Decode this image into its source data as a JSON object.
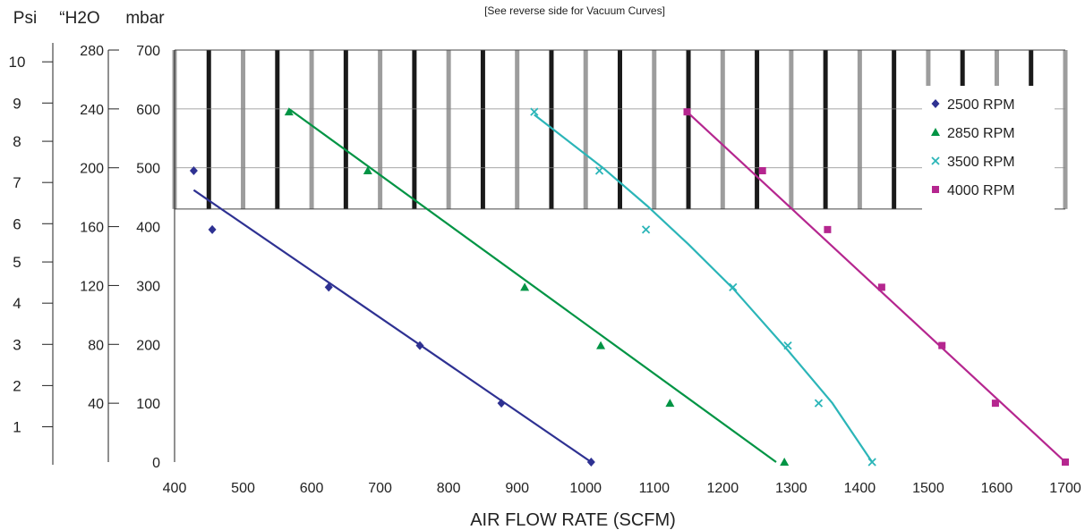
{
  "note": "[See reverse side for Vacuum Curves]",
  "chart_data": {
    "type": "scatter",
    "xlabel": "AIR FLOW RATE (SCFM)",
    "xlim": [
      400,
      1700
    ],
    "x_ticks": [
      "400",
      "500",
      "600",
      "700",
      "800",
      "900",
      "1000",
      "1100",
      "1200",
      "1300",
      "1400",
      "1500",
      "1600",
      "1700"
    ],
    "ylim": [
      0,
      700
    ],
    "shaded_band_above_mbar": 430,
    "y_axes": [
      {
        "name": "mbar",
        "label": "mbar",
        "ticks": [
          {
            "label": "0",
            "mbar": 0
          },
          {
            "label": "100",
            "mbar": 100
          },
          {
            "label": "200",
            "mbar": 200
          },
          {
            "label": "300",
            "mbar": 300
          },
          {
            "label": "400",
            "mbar": 400
          },
          {
            "label": "500",
            "mbar": 500
          },
          {
            "label": "600",
            "mbar": 600
          },
          {
            "label": "700",
            "mbar": 700
          }
        ]
      },
      {
        "name": "h2o",
        "label": "“H2O",
        "ticks": [
          {
            "label": "40",
            "mbar": 100
          },
          {
            "label": "80",
            "mbar": 200
          },
          {
            "label": "120",
            "mbar": 300
          },
          {
            "label": "160",
            "mbar": 400
          },
          {
            "label": "200",
            "mbar": 500
          },
          {
            "label": "240",
            "mbar": 600
          },
          {
            "label": "280",
            "mbar": 700
          }
        ]
      },
      {
        "name": "psi",
        "label": "Psi",
        "ticks": [
          {
            "label": "1",
            "mbar": 60
          },
          {
            "label": "2",
            "mbar": 130
          },
          {
            "label": "3",
            "mbar": 200
          },
          {
            "label": "4",
            "mbar": 270
          },
          {
            "label": "5",
            "mbar": 340
          },
          {
            "label": "6",
            "mbar": 405
          },
          {
            "label": "7",
            "mbar": 475
          },
          {
            "label": "8",
            "mbar": 545
          },
          {
            "label": "9",
            "mbar": 610
          },
          {
            "label": "10",
            "mbar": 680
          }
        ]
      }
    ],
    "legend_position": "top-right",
    "series": [
      {
        "name": "2500 RPM",
        "color": "#2e3192",
        "marker": "diamond",
        "points": [
          [
            428,
            495
          ],
          [
            455,
            395
          ],
          [
            625,
            297
          ],
          [
            758,
            198
          ],
          [
            877,
            100
          ],
          [
            1008,
            0
          ]
        ],
        "fit": [
          [
            428,
            462
          ],
          [
            1008,
            0
          ]
        ]
      },
      {
        "name": "2850 RPM",
        "color": "#009444",
        "marker": "triangle",
        "points": [
          [
            567,
            595
          ],
          [
            682,
            495
          ],
          [
            911,
            297
          ],
          [
            1022,
            198
          ],
          [
            1123,
            100
          ],
          [
            1290,
            0
          ]
        ],
        "fit": [
          [
            567,
            600
          ],
          [
            1278,
            0
          ]
        ]
      },
      {
        "name": "3500 RPM",
        "color": "#2bb5b8",
        "marker": "x",
        "points": [
          [
            925,
            595
          ],
          [
            1020,
            495
          ],
          [
            1088,
            395
          ],
          [
            1215,
            297
          ],
          [
            1295,
            198
          ],
          [
            1340,
            100
          ],
          [
            1418,
            0
          ]
        ],
        "fit": [
          [
            925,
            590
          ],
          [
            1025,
            500
          ],
          [
            1090,
            435
          ],
          [
            1150,
            370
          ],
          [
            1215,
            295
          ],
          [
            1295,
            190
          ],
          [
            1360,
            100
          ],
          [
            1418,
            0
          ]
        ]
      },
      {
        "name": "4000 RPM",
        "color": "#b5268f",
        "marker": "square",
        "points": [
          [
            1148,
            595
          ],
          [
            1258,
            495
          ],
          [
            1353,
            395
          ],
          [
            1432,
            297
          ],
          [
            1520,
            198
          ],
          [
            1598,
            100
          ],
          [
            1700,
            0
          ]
        ],
        "fit": [
          [
            1148,
            595
          ],
          [
            1700,
            0
          ]
        ]
      }
    ]
  }
}
